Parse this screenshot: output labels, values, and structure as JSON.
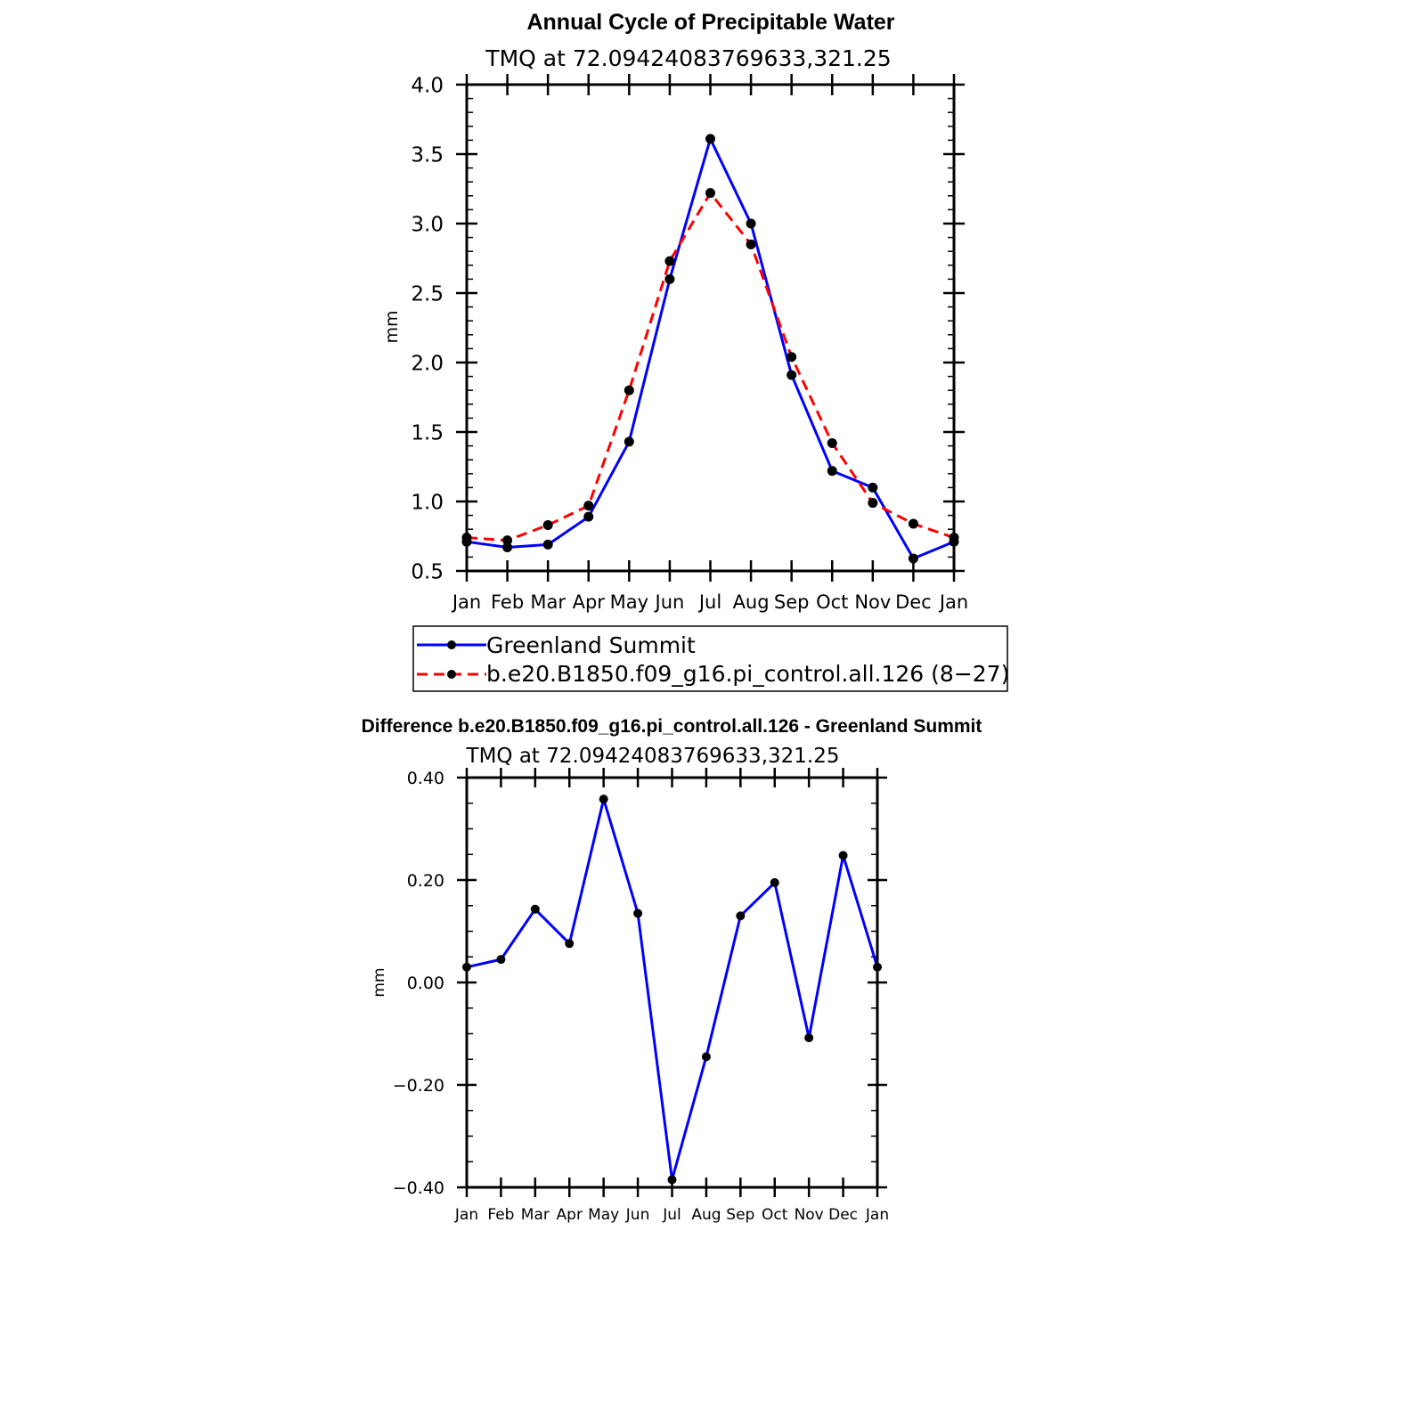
{
  "chart_data": [
    {
      "type": "line",
      "title": "Annual Cycle of Precipitable Water",
      "subtitle": "TMQ at 72.09424083769633,321.25",
      "xlabel": "",
      "ylabel": "mm",
      "categories": [
        "Jan",
        "Feb",
        "Mar",
        "Apr",
        "May",
        "Jun",
        "Jul",
        "Aug",
        "Sep",
        "Oct",
        "Nov",
        "Dec",
        "Jan"
      ],
      "ylim": [
        0.5,
        4.0
      ],
      "yticks": [
        "0.5",
        "1.0",
        "1.5",
        "2.0",
        "2.5",
        "3.0",
        "3.5",
        "4.0"
      ],
      "legend_position": "bottom",
      "series": [
        {
          "name": "Greenland Summit",
          "color": "#0000ff",
          "line_style": "solid",
          "values": [
            0.71,
            0.67,
            0.69,
            0.89,
            1.43,
            2.6,
            3.61,
            3.0,
            1.91,
            1.22,
            1.1,
            0.59,
            0.71
          ]
        },
        {
          "name": "b.e20.B1850.f09_g16.pi_control.all.126 (8−27)",
          "color": "#ff0000",
          "line_style": "dashed",
          "values": [
            0.74,
            0.72,
            0.83,
            0.97,
            1.8,
            2.73,
            3.22,
            2.85,
            2.04,
            1.42,
            0.99,
            0.84,
            0.74
          ]
        }
      ]
    },
    {
      "type": "line",
      "title": "Difference b.e20.B1850.f09_g16.pi_control.all.126 - Greenland Summit",
      "subtitle": "TMQ at 72.09424083769633,321.25",
      "xlabel": "",
      "ylabel": "mm",
      "categories": [
        "Jan",
        "Feb",
        "Mar",
        "Apr",
        "May",
        "Jun",
        "Jul",
        "Aug",
        "Sep",
        "Oct",
        "Nov",
        "Dec",
        "Jan"
      ],
      "ylim": [
        -0.4,
        0.4
      ],
      "yticks": [
        "−0.40",
        "−0.20",
        "0.00",
        "0.20",
        "0.40"
      ],
      "series": [
        {
          "color": "#0000ff",
          "line_style": "solid",
          "values": [
            0.03,
            0.045,
            0.143,
            0.076,
            0.358,
            0.135,
            -0.385,
            -0.145,
            0.13,
            0.195,
            -0.108,
            0.248,
            0.03
          ]
        }
      ]
    }
  ]
}
